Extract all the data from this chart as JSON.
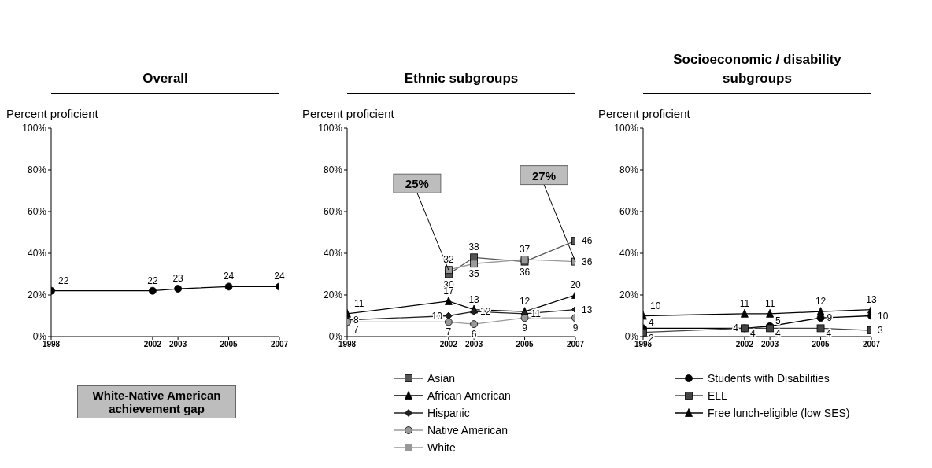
{
  "chart_data": [
    {
      "type": "line",
      "title": "Overall",
      "ylabel": "Percent proficient",
      "x": [
        1998,
        2002,
        2003,
        2005,
        2007
      ],
      "xlim": [
        1998,
        2007
      ],
      "xticks": [
        1998,
        2002,
        2003,
        2005,
        2007
      ],
      "ylim": [
        0,
        100
      ],
      "yticks": [
        {
          "value": 0,
          "label": "0%"
        },
        {
          "value": 20,
          "label": "20%"
        },
        {
          "value": 40,
          "label": "40%"
        },
        {
          "value": 60,
          "label": "60%"
        },
        {
          "value": 80,
          "label": "80%"
        },
        {
          "value": 100,
          "label": "100%"
        }
      ],
      "series": [
        {
          "color": "#000000",
          "marker": "circle",
          "values": [
            22,
            22,
            23,
            24,
            24
          ]
        }
      ],
      "data_labels": true,
      "legend": false,
      "annotations": [
        "White-Native American achievement gap"
      ]
    },
    {
      "type": "line",
      "title": "Ethnic subgroups",
      "ylabel": "Percent proficient",
      "x": [
        1998,
        2002,
        2003,
        2005,
        2007
      ],
      "xlim": [
        1998,
        2007
      ],
      "xticks": [
        1998,
        2002,
        2003,
        2005,
        2007
      ],
      "ylim": [
        0,
        100
      ],
      "yticks": [
        {
          "value": 0,
          "label": "0%"
        },
        {
          "value": 20,
          "label": "20%"
        },
        {
          "value": 40,
          "label": "40%"
        },
        {
          "value": 60,
          "label": "60%"
        },
        {
          "value": 80,
          "label": "80%"
        },
        {
          "value": 100,
          "label": "100%"
        }
      ],
      "series": [
        {
          "name": "Asian",
          "color": "#555555",
          "marker": "square",
          "values": [
            null,
            30,
            38,
            36,
            46
          ]
        },
        {
          "name": "African American",
          "color": "#000000",
          "marker": "triangle",
          "values": [
            11,
            17,
            13,
            12,
            20
          ]
        },
        {
          "name": "Hispanic",
          "color": "#222222",
          "marker": "diamond",
          "values": [
            8,
            10,
            12,
            11,
            13
          ]
        },
        {
          "name": "Native American",
          "color": "#999999",
          "marker": "circle",
          "values": [
            7,
            7,
            6,
            9,
            9
          ]
        },
        {
          "name": "White",
          "color": "#999999",
          "marker": "square",
          "values": [
            null,
            32,
            35,
            37,
            36
          ]
        }
      ],
      "data_labels": true,
      "legend": "bottom",
      "annotations": [
        {
          "text": "25%",
          "x": 2002,
          "y": 32
        },
        {
          "text": "27%",
          "x": 2007,
          "y": 36
        }
      ]
    },
    {
      "type": "line",
      "title": "Socioeconomic / disability subgroups",
      "ylabel": "Percent proficient",
      "x": [
        1998,
        2002,
        2003,
        2005,
        2007
      ],
      "xlim": [
        1998,
        2007
      ],
      "xticks": [
        1998,
        2002,
        2003,
        2005,
        2007
      ],
      "ylim": [
        0,
        100
      ],
      "yticks": [
        {
          "value": 0,
          "label": "0%"
        },
        {
          "value": 20,
          "label": "20%"
        },
        {
          "value": 40,
          "label": "40%"
        },
        {
          "value": 60,
          "label": "60%"
        },
        {
          "value": 80,
          "label": "80%"
        },
        {
          "value": 100,
          "label": "100%"
        }
      ],
      "series": [
        {
          "name": "Students with Disabilities",
          "color": "#000000",
          "marker": "circle",
          "values": [
            4,
            4,
            5,
            9,
            10
          ]
        },
        {
          "name": "ELL",
          "color": "#444444",
          "marker": "square",
          "values": [
            2,
            4,
            4,
            4,
            3
          ]
        },
        {
          "name": "Free lunch-eligible (low SES)",
          "color": "#000000",
          "marker": "triangle",
          "values": [
            10,
            11,
            11,
            12,
            13
          ]
        }
      ],
      "data_labels": true,
      "legend": "bottom"
    }
  ]
}
